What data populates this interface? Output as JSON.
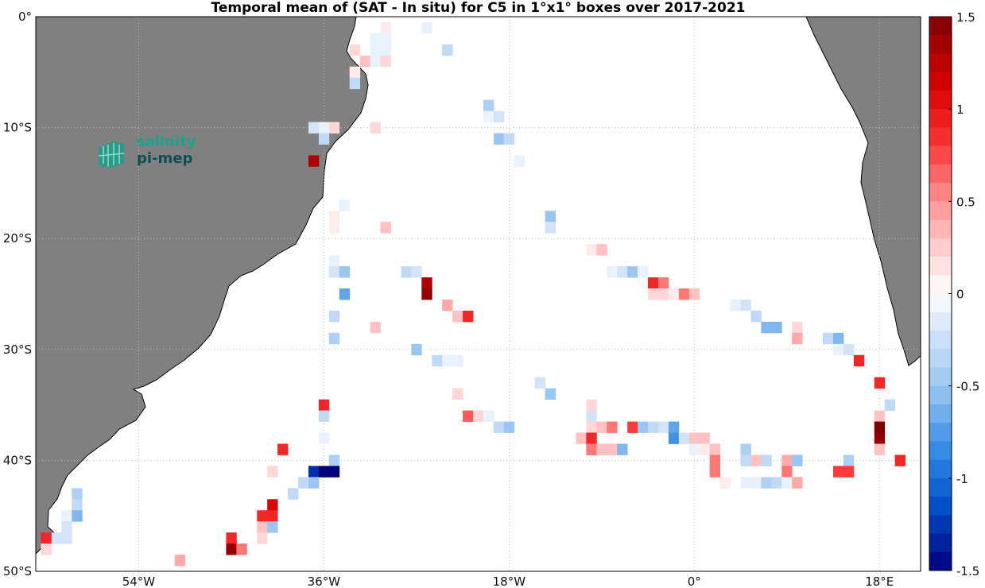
{
  "title": "Temporal mean of (SAT - In situ) for C5 in 1°x1° boxes over 2017-2021",
  "map": {
    "lon_range": [
      -64,
      22
    ],
    "lat_range": [
      -50,
      0
    ],
    "ocean_color": "#ffffff",
    "land_color": "#808080",
    "grid": "dotted",
    "lat_ticks": [
      "0°",
      "10°S",
      "20°S",
      "30°S",
      "40°S",
      "50°S"
    ],
    "lon_ticks": [
      "54°W",
      "36°W",
      "18°W",
      "0°",
      "18°E"
    ]
  },
  "colorbar": {
    "range": [
      -1.5,
      1.5
    ],
    "ticks": [
      "1.5",
      "1",
      "0.5",
      "0",
      "-0.5",
      "-1",
      "-1.5"
    ],
    "low_color": "#00007f",
    "zero_color": "#ffffff",
    "high_color": "#7f0000"
  },
  "logo": {
    "line1": "salinity",
    "line2": "pi-mep",
    "color1": "#16a58e",
    "color2": "#0e4f50"
  },
  "chart_data": {
    "type": "heatmap",
    "title": "Temporal mean of (SAT - In situ) for C5 in 1°x1° boxes over 2017-2021",
    "units_note": "cells are [lon, lat, value]; lon east positive, lat north positive",
    "cells": [
      [
        -30,
        -1,
        0.1
      ],
      [
        -26,
        -1,
        -0.1
      ],
      [
        -31,
        -2,
        -0.1
      ],
      [
        -30,
        -2,
        -0.1
      ],
      [
        -33,
        -3,
        0.2
      ],
      [
        -31,
        -3,
        -0.1
      ],
      [
        -30,
        -3,
        -0.1
      ],
      [
        -24,
        -3,
        -0.3
      ],
      [
        -32,
        -4,
        0.3
      ],
      [
        -31,
        -4,
        -0.1
      ],
      [
        -30,
        -4,
        0.2
      ],
      [
        -33,
        -5,
        0.1
      ],
      [
        -33,
        -6,
        -0.3
      ],
      [
        -20,
        -8,
        -0.4
      ],
      [
        -20,
        -9,
        -0.1
      ],
      [
        -19,
        -9,
        -0.2
      ],
      [
        -36,
        -10,
        -0.1
      ],
      [
        -35,
        -10,
        0.2
      ],
      [
        -37,
        -10,
        -0.2
      ],
      [
        -31,
        -10,
        0.2
      ],
      [
        -36,
        -11,
        -0.3
      ],
      [
        -19,
        -11,
        -0.5
      ],
      [
        -18,
        -11,
        -0.3
      ],
      [
        -17,
        -13,
        -0.1
      ],
      [
        -37,
        -13,
        1.3
      ],
      [
        -34,
        -17,
        -0.1
      ],
      [
        -35,
        -18,
        0.1
      ],
      [
        -35,
        -19,
        0.1
      ],
      [
        -30,
        -19,
        0.3
      ],
      [
        -14,
        -18,
        -0.5
      ],
      [
        -14,
        -19,
        -0.2
      ],
      [
        -10,
        -21,
        0.1
      ],
      [
        -9,
        -21,
        0.3
      ],
      [
        -35,
        -22,
        -0.1
      ],
      [
        -35,
        -23,
        -0.2
      ],
      [
        -34,
        -23,
        -0.5
      ],
      [
        -28,
        -23,
        -0.3
      ],
      [
        -27,
        -23,
        -0.2
      ],
      [
        -8,
        -23,
        -0.1
      ],
      [
        -7,
        -23,
        -0.2
      ],
      [
        -6,
        -23,
        -0.5
      ],
      [
        -5,
        -23,
        -0.1
      ],
      [
        -26,
        -24,
        1.3
      ],
      [
        -4,
        -24,
        0.9
      ],
      [
        -3,
        -24,
        0.6
      ],
      [
        -34,
        -25,
        -0.7
      ],
      [
        -26,
        -25,
        1.4
      ],
      [
        -4,
        -25,
        0.2
      ],
      [
        -3,
        -25,
        0.2
      ],
      [
        -2,
        -25,
        0.1
      ],
      [
        -1,
        -25,
        0.6
      ],
      [
        0,
        -25,
        0.3
      ],
      [
        -24,
        -26,
        0.4
      ],
      [
        4,
        -26,
        -0.1
      ],
      [
        5,
        -26,
        -0.2
      ],
      [
        -23,
        -27,
        0.3
      ],
      [
        -22,
        -27,
        0.9
      ],
      [
        -35,
        -27,
        -0.3
      ],
      [
        6,
        -27,
        -0.3
      ],
      [
        -31,
        -28,
        0.3
      ],
      [
        7,
        -28,
        -0.6
      ],
      [
        8,
        -28,
        -0.6
      ],
      [
        10,
        -28,
        0.2
      ],
      [
        -35,
        -29,
        -0.4
      ],
      [
        10,
        -29,
        0.4
      ],
      [
        13,
        -29,
        -0.3
      ],
      [
        14,
        -29,
        -0.6
      ],
      [
        14,
        -30,
        -0.1
      ],
      [
        15,
        -30,
        -0.2
      ],
      [
        -27,
        -30,
        -0.5
      ],
      [
        16,
        -31,
        0.9
      ],
      [
        -25,
        -31,
        -0.3
      ],
      [
        -24,
        -31,
        -0.1
      ],
      [
        -23,
        -31,
        -0.1
      ],
      [
        -15,
        -33,
        -0.2
      ],
      [
        18,
        -33,
        0.9
      ],
      [
        -14,
        -34,
        -0.5
      ],
      [
        -23,
        -34,
        0.2
      ],
      [
        -10,
        -35,
        0.2
      ],
      [
        19,
        -35,
        -0.3
      ],
      [
        -36,
        -35,
        0.9
      ],
      [
        -10,
        -36,
        -0.2
      ],
      [
        -22,
        -36,
        0.7
      ],
      [
        -21,
        -36,
        0.2
      ],
      [
        -20,
        -36,
        -0.1
      ],
      [
        -36,
        -36,
        -0.3
      ],
      [
        18,
        -36,
        0.3
      ],
      [
        -19,
        -37,
        -0.3
      ],
      [
        -18,
        -37,
        -0.5
      ],
      [
        -10,
        -37,
        0.2
      ],
      [
        -9,
        -37,
        0.3
      ],
      [
        -8,
        -37,
        0.6
      ],
      [
        -6,
        -37,
        0.8
      ],
      [
        -5,
        -37,
        -0.5
      ],
      [
        -4,
        -37,
        -0.3
      ],
      [
        -3,
        -37,
        -0.2
      ],
      [
        -2,
        -37,
        -0.7
      ],
      [
        18,
        -37,
        1.5
      ],
      [
        -36,
        -38,
        -0.1
      ],
      [
        -11,
        -38,
        0.3
      ],
      [
        -10,
        -38,
        0.9
      ],
      [
        -2,
        -38,
        -0.8
      ],
      [
        -1,
        -38,
        -0.2
      ],
      [
        0,
        -38,
        0.3
      ],
      [
        1,
        -38,
        0.3
      ],
      [
        18,
        -38,
        1.4
      ],
      [
        -40,
        -39,
        0.9
      ],
      [
        -10,
        -39,
        0.6
      ],
      [
        -9,
        -39,
        0.3
      ],
      [
        -8,
        -39,
        0.3
      ],
      [
        -7,
        -39,
        -0.6
      ],
      [
        0,
        -39,
        -0.1
      ],
      [
        1,
        -39,
        0.1
      ],
      [
        2,
        -39,
        0.3
      ],
      [
        5,
        -39,
        -0.4
      ],
      [
        18,
        -39,
        0.3
      ],
      [
        -35,
        -40,
        -0.4
      ],
      [
        2,
        -40,
        0.6
      ],
      [
        5,
        -40,
        -0.3
      ],
      [
        6,
        -40,
        0.3
      ],
      [
        7,
        -40,
        -0.3
      ],
      [
        9,
        -40,
        0.4
      ],
      [
        10,
        -40,
        -0.5
      ],
      [
        15,
        -40,
        -0.4
      ],
      [
        20,
        -40,
        0.9
      ],
      [
        -41,
        -41,
        0.2
      ],
      [
        -37,
        -41,
        -1.3
      ],
      [
        -36,
        -41,
        -1.6
      ],
      [
        -35,
        -41,
        -1.7
      ],
      [
        2,
        -41,
        0.6
      ],
      [
        9,
        -41,
        0.6
      ],
      [
        14,
        -41,
        0.8
      ],
      [
        15,
        -41,
        0.8
      ],
      [
        -38,
        -42,
        -0.3
      ],
      [
        -37,
        -42,
        -0.5
      ],
      [
        3,
        -42,
        0.1
      ],
      [
        5,
        -42,
        -0.1
      ],
      [
        6,
        -42,
        -0.1
      ],
      [
        7,
        -42,
        -0.4
      ],
      [
        8,
        -42,
        -0.3
      ],
      [
        9,
        -42,
        -0.1
      ],
      [
        10,
        -42,
        0.4
      ],
      [
        -39,
        -43,
        -0.3
      ],
      [
        -60,
        -43,
        -0.4
      ],
      [
        -60,
        -44,
        -0.3
      ],
      [
        -41,
        -44,
        1.1
      ],
      [
        -61,
        -45,
        -0.1
      ],
      [
        -60,
        -45,
        -0.6
      ],
      [
        -42,
        -45,
        0.9
      ],
      [
        -41,
        -45,
        0.9
      ],
      [
        -61,
        -46,
        -0.2
      ],
      [
        -42,
        -46,
        0.3
      ],
      [
        -41,
        -46,
        -0.5
      ],
      [
        -62,
        -47,
        -0.2
      ],
      [
        -61,
        -47,
        -0.2
      ],
      [
        -63,
        -47,
        0.9
      ],
      [
        -42,
        -47,
        0.2
      ],
      [
        -45,
        -47,
        0.9
      ],
      [
        -63,
        -48,
        0.2
      ],
      [
        -45,
        -48,
        1.4
      ],
      [
        -44,
        -48,
        0.6
      ],
      [
        -50,
        -49,
        0.4
      ]
    ]
  }
}
